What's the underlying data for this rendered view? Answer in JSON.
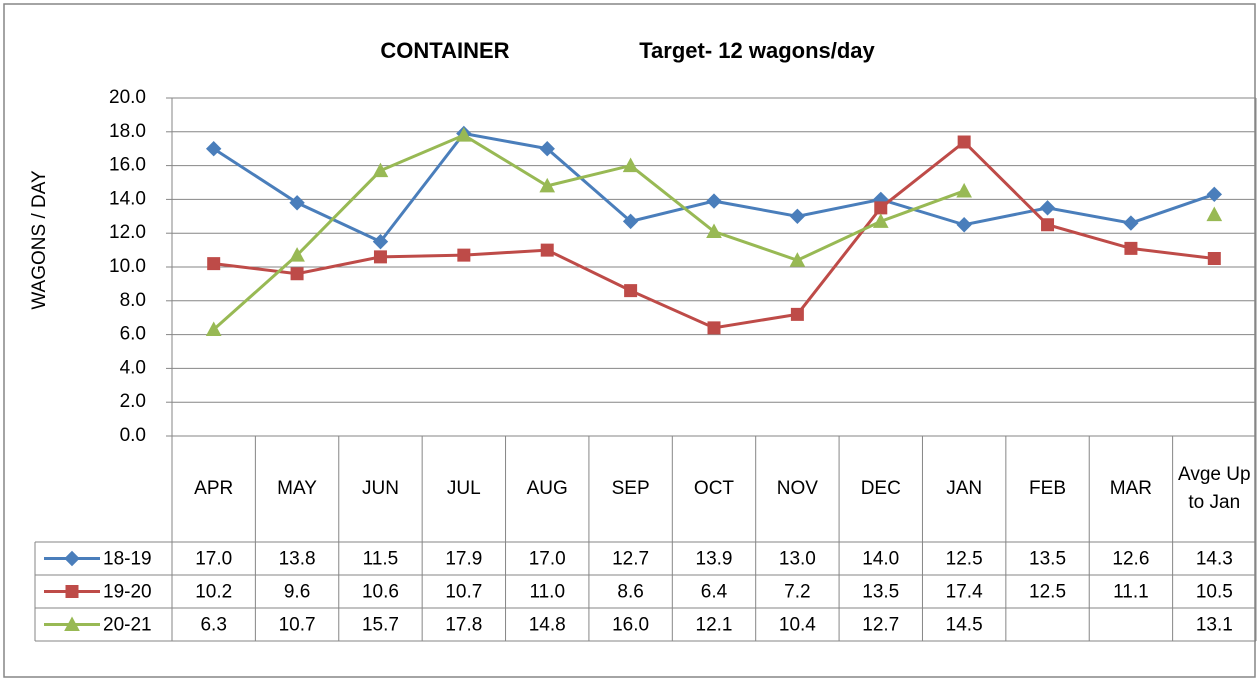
{
  "chart_data": {
    "type": "line",
    "title": "CONTAINER",
    "subtitle": "Target- 12 wagons/day",
    "y_label": "WAGONS / DAY",
    "categories": [
      "APR",
      "MAY",
      "JUN",
      "JUL",
      "AUG",
      "SEP",
      "OCT",
      "NOV",
      "DEC",
      "JAN",
      "FEB",
      "MAR",
      "Avge Up to Jan"
    ],
    "ylim": [
      0,
      20
    ],
    "yticks": [
      {
        "value": 0,
        "label": "0.0"
      },
      {
        "value": 2,
        "label": "2.0"
      },
      {
        "value": 4,
        "label": "4.0"
      },
      {
        "value": 6,
        "label": "6.0"
      },
      {
        "value": 8,
        "label": "8.0"
      },
      {
        "value": 10,
        "label": "10.0"
      },
      {
        "value": 12,
        "label": "12.0"
      },
      {
        "value": 14,
        "label": "14.0"
      },
      {
        "value": 16,
        "label": "16.0"
      },
      {
        "value": 18,
        "label": "18.0"
      },
      {
        "value": 20,
        "label": "20.0"
      }
    ],
    "grid": true,
    "series": [
      {
        "name": "18-19",
        "color": "#4a7ebb",
        "marker": "diamond",
        "values": [
          17.0,
          13.8,
          11.5,
          17.9,
          17.0,
          12.7,
          13.9,
          13.0,
          14.0,
          12.5,
          13.5,
          12.6,
          14.3
        ],
        "value_labels": [
          "17.0",
          "13.8",
          "11.5",
          "17.9",
          "17.0",
          "12.7",
          "13.9",
          "13.0",
          "14.0",
          "12.5",
          "13.5",
          "12.6",
          "14.3"
        ]
      },
      {
        "name": "19-20",
        "color": "#be4b48",
        "marker": "square",
        "values": [
          10.2,
          9.6,
          10.6,
          10.7,
          11.0,
          8.6,
          6.4,
          7.2,
          13.5,
          17.4,
          12.5,
          11.1,
          10.5
        ],
        "value_labels": [
          "10.2",
          "9.6",
          "10.6",
          "10.7",
          "11.0",
          "8.6",
          "6.4",
          "7.2",
          "13.5",
          "17.4",
          "12.5",
          "11.1",
          "10.5"
        ]
      },
      {
        "name": "20-21",
        "color": "#98b954",
        "marker": "triangle",
        "values": [
          6.3,
          10.7,
          15.7,
          17.8,
          14.8,
          16.0,
          12.1,
          10.4,
          12.7,
          14.5,
          null,
          null,
          13.1
        ],
        "value_labels": [
          "6.3",
          "10.7",
          "15.7",
          "17.8",
          "14.8",
          "16.0",
          "12.1",
          "10.4",
          "12.7",
          "14.5",
          null,
          null,
          "13.1"
        ]
      }
    ]
  }
}
